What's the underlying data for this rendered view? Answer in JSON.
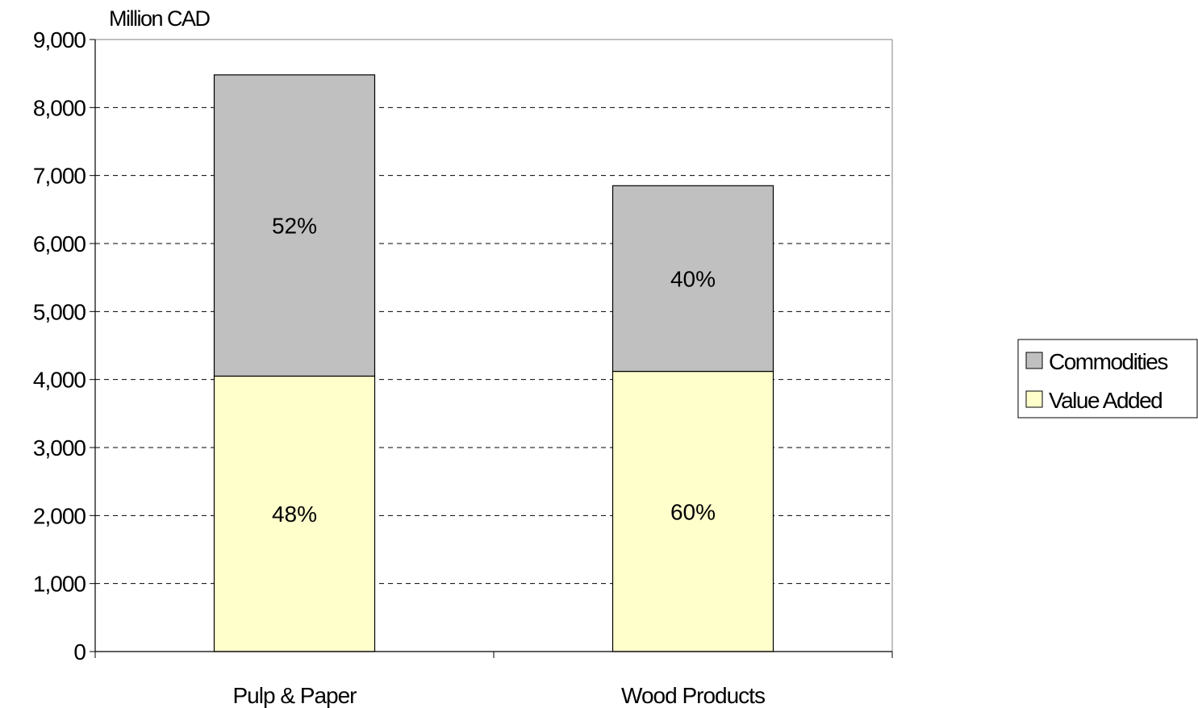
{
  "chart_data": {
    "type": "bar",
    "stacked": true,
    "unit_label": "Million CAD",
    "categories": [
      "Pulp & Paper",
      "Wood Products"
    ],
    "series": [
      {
        "name": "Value Added",
        "values": [
          4050,
          4120
        ],
        "labels": [
          "48%",
          "60%"
        ],
        "color": "#ffffcc"
      },
      {
        "name": "Commodities",
        "values": [
          4430,
          2730
        ],
        "labels": [
          "52%",
          "40%"
        ],
        "color": "#c0c0c0"
      }
    ],
    "ylim": [
      0,
      9000
    ],
    "yticks": [
      "0",
      "1,000",
      "2,000",
      "3,000",
      "4,000",
      "5,000",
      "6,000",
      "7,000",
      "8,000",
      "9,000"
    ],
    "grid": true,
    "legend_position": "right",
    "legend_order": [
      "Commodities",
      "Value Added"
    ]
  }
}
